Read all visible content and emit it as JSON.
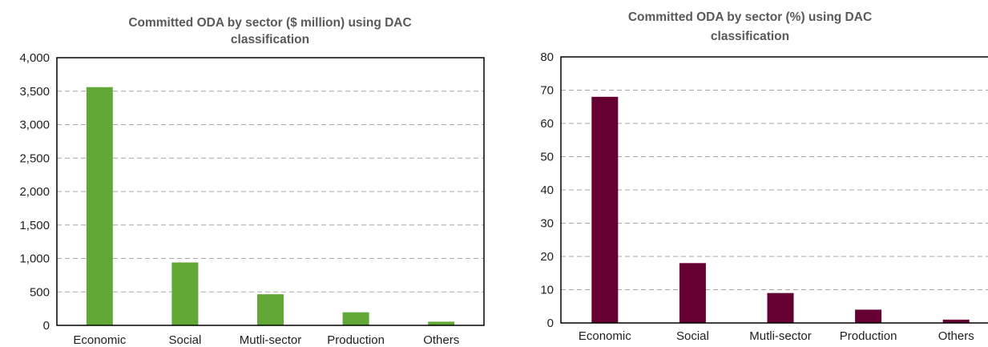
{
  "chart_data": [
    {
      "type": "bar",
      "title": [
        "Committed ODA by sector ($ million) using DAC",
        "classification"
      ],
      "categories": [
        "Economic",
        "Social",
        "Mutli-sector",
        "Production",
        "Others"
      ],
      "values": [
        3560,
        940,
        465,
        195,
        55
      ],
      "ylim": [
        0,
        4000
      ],
      "yticks": [
        "0",
        "500",
        "1,000",
        "1,500",
        "2,000",
        "2,500",
        "3,000",
        "3,500",
        "4,000"
      ],
      "grid": true,
      "legend": "none",
      "bar_color": "#62a836"
    },
    {
      "type": "bar",
      "title": [
        "Committed ODA by sector (%) using DAC",
        "classification"
      ],
      "categories": [
        "Economic",
        "Social",
        "Mutli-sector",
        "Production",
        "Others"
      ],
      "values": [
        68,
        18,
        9,
        4,
        1
      ],
      "ylim": [
        0,
        80
      ],
      "yticks": [
        "0",
        "10",
        "20",
        "30",
        "40",
        "50",
        "60",
        "70",
        "80"
      ],
      "grid": true,
      "legend": "none",
      "bar_color": "#660033"
    }
  ]
}
